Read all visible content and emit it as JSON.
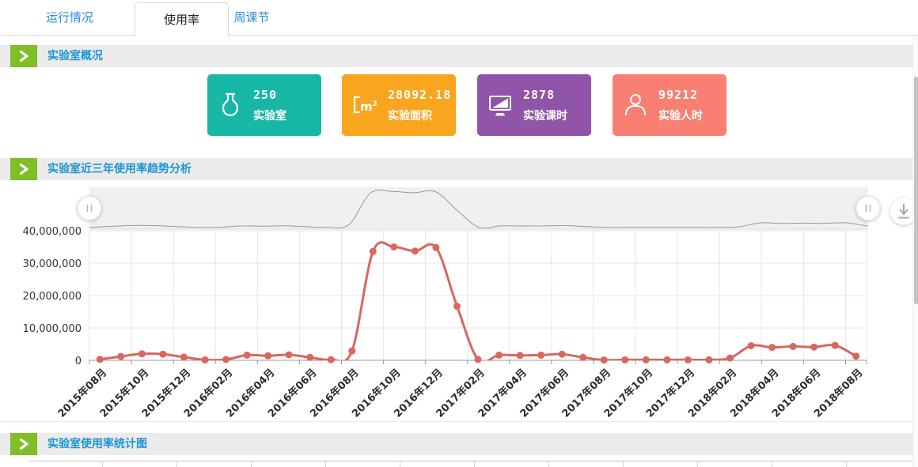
{
  "tabs": [
    {
      "label": "运行情况",
      "active": false
    },
    {
      "label": "使用率",
      "active": true
    },
    {
      "label": "周课节",
      "active": false
    }
  ],
  "sections": {
    "overview": {
      "title": "实验室概况",
      "cards": [
        {
          "icon": "flask-icon",
          "value": "250",
          "label": "实验室",
          "color": "#17b7a5"
        },
        {
          "icon": "square-meter-icon",
          "value": "28092.18",
          "label": "实验面积",
          "color": "#faa51e"
        },
        {
          "icon": "monitor-icon",
          "value": "2878",
          "label": "实验课时",
          "color": "#9055a9"
        },
        {
          "icon": "person-icon",
          "value": "99212",
          "label": "实验人时",
          "color": "#f97f73"
        }
      ]
    },
    "trend": {
      "title": "实验室近三年使用率趋势分析"
    },
    "stats": {
      "title": "实验室使用率统计图"
    }
  },
  "colors": {
    "accent_green": "#7fbe26",
    "title_blue": "#1a94d4",
    "tab_blue": "#2a8fd6",
    "series_red": "#d9665f",
    "navigator_line": "#999999"
  },
  "chart_data": {
    "type": "line",
    "title": "实验室近三年使用率趋势分析",
    "x": [
      "2015年08月",
      "2015年09月",
      "2015年10月",
      "2015年11月",
      "2015年12月",
      "2016年01月",
      "2016年02月",
      "2016年03月",
      "2016年04月",
      "2016年05月",
      "2016年06月",
      "2016年07月",
      "2016年08月",
      "2016年09月",
      "2016年10月",
      "2016年11月",
      "2016年12月",
      "2017年01月",
      "2017年02月",
      "2017年03月",
      "2017年04月",
      "2017年05月",
      "2017年06月",
      "2017年07月",
      "2017年08月",
      "2017年09月",
      "2017年10月",
      "2017年11月",
      "2017年12月",
      "2018年01月",
      "2018年02月",
      "2018年03月",
      "2018年04月",
      "2018年05月",
      "2018年06月",
      "2018年07月",
      "2018年08月"
    ],
    "values": [
      300000,
      1200000,
      2000000,
      1900000,
      1000000,
      150000,
      250000,
      1600000,
      1400000,
      1700000,
      900000,
      200000,
      2900000,
      33600000,
      35000000,
      33700000,
      34800000,
      16700000,
      300000,
      1600000,
      1500000,
      1600000,
      1900000,
      900000,
      100000,
      150000,
      150000,
      150000,
      150000,
      150000,
      700000,
      4500000,
      4000000,
      4300000,
      4100000,
      4600000,
      1300000
    ],
    "ylim": [
      0,
      40000000
    ],
    "y_ticks": [
      "0",
      "10,000,000",
      "20,000,000",
      "30,000,000",
      "40,000,000"
    ],
    "x_label_every": 2,
    "grid": true,
    "legend": "none",
    "series_color": "#d9665f",
    "has_navigator": true
  }
}
